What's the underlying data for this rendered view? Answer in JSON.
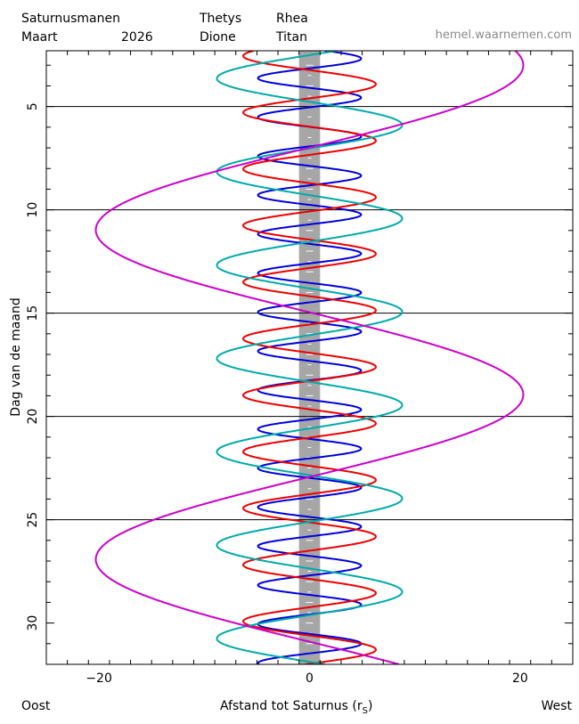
{
  "header": {
    "title": "Saturnusmanen",
    "month": "Maart",
    "year": "2026",
    "site": "hemel.waarnemen.com"
  },
  "axes": {
    "ylabel": "Dag van de maand",
    "xlabel": "Afstand tot Saturnus (r",
    "xlabel_sub": "S",
    "xlabel_close": ")",
    "left_label": "Oost",
    "right_label": "West"
  },
  "chart_data": {
    "type": "line",
    "x_range": [
      -25,
      25
    ],
    "y_range": [
      2.3,
      32
    ],
    "y_inverted": true,
    "x_ticks": [
      -20,
      0,
      20
    ],
    "x_tick_labels": [
      "−20",
      "0",
      "20"
    ],
    "y_ticks": [
      5,
      10,
      15,
      20,
      25,
      30
    ],
    "y_tick_labels": [
      "5",
      "10",
      "15",
      "20",
      "25",
      "30"
    ],
    "day_lines": [
      5,
      10,
      15,
      20,
      25
    ],
    "saturn_band": {
      "x": [
        -1,
        1
      ],
      "color": "#a6a6a6"
    },
    "series": [
      {
        "name": "Thetys",
        "color": "#0000dd",
        "amplitude": 4.9,
        "period_days": 1.888,
        "ref_day": 2.68,
        "ref_x": 4.9
      },
      {
        "name": "Dione",
        "color": "#ee0000",
        "amplitude": 6.3,
        "period_days": 2.737,
        "ref_day": 2.55,
        "ref_x": -6.3
      },
      {
        "name": "Rhea",
        "color": "#00aaaa",
        "amplitude": 8.8,
        "period_days": 4.518,
        "ref_day": 5.9,
        "ref_x": 8.8
      },
      {
        "name": "Titan",
        "color": "#cc00cc",
        "amplitude": 20.3,
        "period_days": 15.945,
        "ref_day": 3.0,
        "ref_x": 20.3
      }
    ]
  }
}
